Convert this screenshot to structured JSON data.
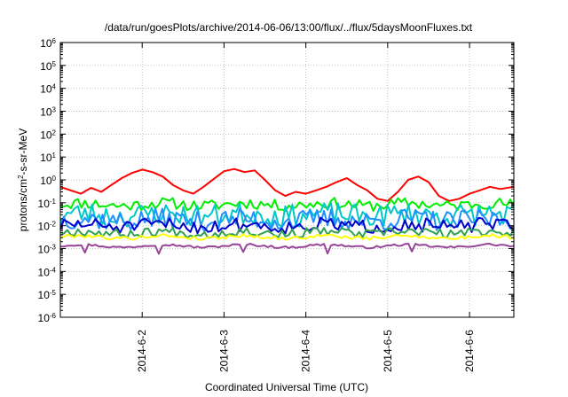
{
  "chart_data": {
    "type": "line",
    "title": "/data/run/goesPlots/archive/2014-06-06/13:00/flux/../flux/5daysMoonFluxes.txt",
    "xlabel": "Coordinated Universal Time (UTC)",
    "ylabel": {
      "before": "protons/cm",
      "sup": "2",
      "after": "-s-sr-MeV"
    },
    "y_scale": "log",
    "ylim_exp": [
      -6,
      6
    ],
    "y_tick_exps": [
      -6,
      -5,
      -4,
      -3,
      -2,
      -1,
      0,
      1,
      2,
      3,
      4,
      5,
      6
    ],
    "y_tick_base": "10",
    "x_range": [
      "2014-06-01T00:00",
      "2014-06-06T13:00"
    ],
    "x_ticks": [
      {
        "label": "2014-6-2",
        "t": "2014-06-02T00:00"
      },
      {
        "label": "2014-6-3",
        "t": "2014-06-03T00:00"
      },
      {
        "label": "2014-6-4",
        "t": "2014-06-04T00:00"
      },
      {
        "label": "2014-6-5",
        "t": "2014-06-05T00:00"
      },
      {
        "label": "2014-6-6",
        "t": "2014-06-06T00:00"
      }
    ],
    "grid": true,
    "legend": "none",
    "series": [
      {
        "color": "#ff0000",
        "x": [
          "2014-06-01T00:00",
          "2014-06-01T03:00",
          "2014-06-01T06:00",
          "2014-06-01T09:00",
          "2014-06-01T12:00",
          "2014-06-01T15:00",
          "2014-06-01T18:00",
          "2014-06-01T21:00",
          "2014-06-02T00:00",
          "2014-06-02T03:00",
          "2014-06-02T06:00",
          "2014-06-02T09:00",
          "2014-06-02T12:00",
          "2014-06-02T15:00",
          "2014-06-02T18:00",
          "2014-06-02T21:00",
          "2014-06-03T00:00",
          "2014-06-03T03:00",
          "2014-06-03T06:00",
          "2014-06-03T09:00",
          "2014-06-03T12:00",
          "2014-06-03T15:00",
          "2014-06-03T18:00",
          "2014-06-03T21:00",
          "2014-06-04T00:00",
          "2014-06-04T03:00",
          "2014-06-04T06:00",
          "2014-06-04T09:00",
          "2014-06-04T12:00",
          "2014-06-04T15:00",
          "2014-06-04T18:00",
          "2014-06-04T21:00",
          "2014-06-05T00:00",
          "2014-06-05T03:00",
          "2014-06-05T06:00",
          "2014-06-05T09:00",
          "2014-06-05T12:00",
          "2014-06-05T15:00",
          "2014-06-05T18:00",
          "2014-06-05T21:00",
          "2014-06-06T00:00",
          "2014-06-06T03:00",
          "2014-06-06T06:00",
          "2014-06-06T09:00",
          "2014-06-06T13:00"
        ],
        "y": [
          0.5,
          0.35,
          0.25,
          0.45,
          0.3,
          0.6,
          1.2,
          2.0,
          2.8,
          2.2,
          1.4,
          0.6,
          0.35,
          0.25,
          0.5,
          1.1,
          2.4,
          3.0,
          2.2,
          2.6,
          1.0,
          0.35,
          0.2,
          0.3,
          0.25,
          0.35,
          0.5,
          0.8,
          1.2,
          0.6,
          0.35,
          0.15,
          0.12,
          0.3,
          1.0,
          1.4,
          0.8,
          0.2,
          0.12,
          0.15,
          0.25,
          0.35,
          0.5,
          0.4,
          0.5
        ]
      },
      {
        "color": "#00ee00",
        "base": 0.085,
        "spread": 0.25,
        "seed": 11,
        "n": 130
      },
      {
        "color": "#00c8c8",
        "base": 0.03,
        "spread": 0.5,
        "seed": 23,
        "n": 130
      },
      {
        "color": "#1e90ff",
        "base": 0.018,
        "spread": 0.45,
        "seed": 37,
        "n": 130
      },
      {
        "color": "#0000cc",
        "base": 0.01,
        "spread": 0.3,
        "seed": 51,
        "n": 130
      },
      {
        "color": "#30a050",
        "base": 0.005,
        "spread": 0.2,
        "seed": 67,
        "n": 130
      },
      {
        "color": "#ffff00",
        "base": 0.0032,
        "spread": 0.08,
        "seed": 79,
        "n": 130
      },
      {
        "color": "#994499",
        "base": 0.0013,
        "spread": 0.05,
        "seed": 97,
        "n": 130,
        "dips": true
      }
    ]
  }
}
